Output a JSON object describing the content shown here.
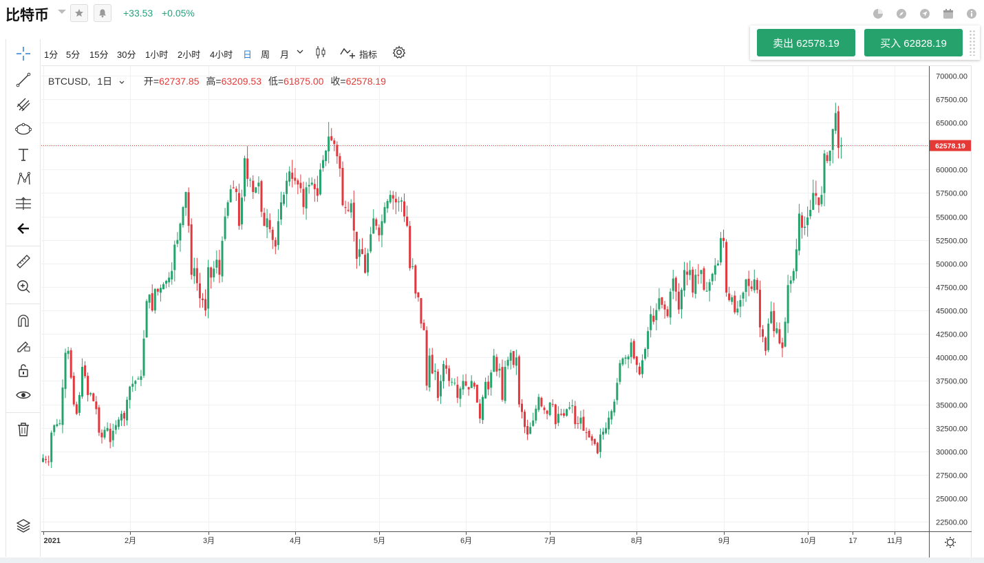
{
  "header": {
    "title": "比特币",
    "change_abs": "+33.53",
    "change_pct": "+0.05%"
  },
  "trade": {
    "sell_label": "卖出 62578.19",
    "buy_label": "买入 62828.19"
  },
  "toolbar": {
    "timeframes": [
      "1分",
      "5分",
      "15分",
      "30分",
      "1小时",
      "2小时",
      "4小时",
      "日",
      "周",
      "月"
    ],
    "active_timeframe": "日",
    "indicators_label": "指标"
  },
  "legend": {
    "symbol": "BTCUSD",
    "interval": "1日",
    "open_label": "开=",
    "open": "62737.85",
    "high_label": "高=",
    "high": "63209.53",
    "low_label": "低=",
    "low": "61875.00",
    "close_label": "收=",
    "close": "62578.19"
  },
  "colors": {
    "up": "#26a36c",
    "down": "#e0383e",
    "accent": "#2a7fd4",
    "price_line": "#e53935"
  },
  "chart_data": {
    "type": "candlestick",
    "y_ticks": [
      "70000.00",
      "67500.00",
      "65000.00",
      "62500.00",
      "60000.00",
      "57500.00",
      "55000.00",
      "52500.00",
      "50000.00",
      "47500.00",
      "45000.00",
      "42500.00",
      "40000.00",
      "37500.00",
      "35000.00",
      "32500.00",
      "30000.00",
      "27500.00",
      "25000.00",
      "22500.00"
    ],
    "ylim": [
      21500,
      71000
    ],
    "x_labels": [
      {
        "label": "2021",
        "day": 0
      },
      {
        "label": "2月",
        "day": 31
      },
      {
        "label": "3月",
        "day": 59
      },
      {
        "label": "4月",
        "day": 90
      },
      {
        "label": "5月",
        "day": 120
      },
      {
        "label": "6月",
        "day": 151
      },
      {
        "label": "7月",
        "day": 181
      },
      {
        "label": "8月",
        "day": 212
      },
      {
        "label": "9月",
        "day": 243
      },
      {
        "label": "10月",
        "day": 273
      },
      {
        "label": "17",
        "day": 289
      },
      {
        "label": "11月",
        "day": 304
      }
    ],
    "last_price": 62578.19,
    "last_price_label": "62578.19",
    "close_anchors": [
      [
        0,
        29300
      ],
      [
        2,
        28900
      ],
      [
        3,
        32000
      ],
      [
        4,
        32800
      ],
      [
        6,
        33000
      ],
      [
        7,
        36800
      ],
      [
        8,
        40500
      ],
      [
        9,
        40700
      ],
      [
        11,
        35000
      ],
      [
        12,
        34000
      ],
      [
        13,
        36000
      ],
      [
        14,
        39000
      ],
      [
        15,
        38000
      ],
      [
        16,
        36000
      ],
      [
        17,
        36200
      ],
      [
        19,
        34500
      ],
      [
        20,
        32000
      ],
      [
        21,
        31500
      ],
      [
        22,
        32300
      ],
      [
        23,
        32500
      ],
      [
        24,
        31000
      ],
      [
        25,
        32200
      ],
      [
        26,
        32800
      ],
      [
        28,
        34000
      ],
      [
        29,
        33500
      ],
      [
        30,
        35500
      ],
      [
        31,
        36900
      ],
      [
        33,
        37500
      ],
      [
        35,
        38000
      ],
      [
        37,
        46000
      ],
      [
        38,
        46700
      ],
      [
        39,
        45000
      ],
      [
        40,
        47300
      ],
      [
        41,
        47000
      ],
      [
        43,
        47800
      ],
      [
        45,
        48500
      ],
      [
        46,
        49200
      ],
      [
        47,
        52000
      ],
      [
        48,
        52500
      ],
      [
        50,
        56000
      ],
      [
        51,
        57600
      ],
      [
        52,
        54000
      ],
      [
        53,
        48800
      ],
      [
        54,
        49500
      ],
      [
        56,
        46300
      ],
      [
        57,
        46100
      ],
      [
        58,
        45000
      ],
      [
        59,
        49600
      ],
      [
        60,
        48500
      ],
      [
        62,
        50400
      ],
      [
        63,
        48800
      ],
      [
        64,
        52400
      ],
      [
        65,
        55000
      ],
      [
        66,
        56500
      ],
      [
        67,
        57900
      ],
      [
        68,
        58000
      ],
      [
        69,
        57600
      ],
      [
        70,
        54000
      ],
      [
        71,
        57000
      ],
      [
        72,
        61200
      ],
      [
        73,
        59000
      ],
      [
        74,
        58900
      ],
      [
        75,
        57600
      ],
      [
        77,
        58600
      ],
      [
        78,
        55500
      ],
      [
        79,
        54000
      ],
      [
        80,
        54800
      ],
      [
        82,
        52500
      ],
      [
        83,
        51800
      ],
      [
        84,
        54500
      ],
      [
        85,
        56500
      ],
      [
        86,
        57300
      ],
      [
        87,
        58800
      ],
      [
        88,
        59800
      ],
      [
        89,
        59000
      ],
      [
        90,
        58800
      ],
      [
        92,
        58000
      ],
      [
        93,
        56000
      ],
      [
        94,
        58100
      ],
      [
        96,
        58600
      ],
      [
        98,
        57200
      ],
      [
        99,
        60000
      ],
      [
        101,
        62000
      ],
      [
        102,
        63500
      ],
      [
        103,
        63100
      ],
      [
        104,
        62700
      ],
      [
        105,
        61400
      ],
      [
        106,
        60100
      ],
      [
        107,
        56200
      ],
      [
        109,
        55600
      ],
      [
        110,
        56400
      ],
      [
        111,
        53500
      ],
      [
        112,
        50500
      ],
      [
        113,
        51500
      ],
      [
        114,
        51000
      ],
      [
        115,
        49000
      ],
      [
        116,
        51100
      ],
      [
        117,
        53100
      ],
      [
        118,
        54800
      ],
      [
        119,
        54000
      ],
      [
        120,
        53000
      ],
      [
        122,
        56000
      ],
      [
        124,
        57300
      ],
      [
        126,
        56500
      ],
      [
        128,
        56700
      ],
      [
        129,
        55000
      ],
      [
        130,
        54000
      ],
      [
        131,
        49500
      ],
      [
        132,
        49700
      ],
      [
        133,
        46800
      ],
      [
        134,
        46400
      ],
      [
        135,
        43600
      ],
      [
        136,
        42900
      ],
      [
        137,
        37000
      ],
      [
        138,
        40200
      ],
      [
        139,
        38300
      ],
      [
        140,
        38600
      ],
      [
        141,
        35700
      ],
      [
        143,
        39300
      ],
      [
        144,
        38800
      ],
      [
        145,
        37500
      ],
      [
        147,
        37300
      ],
      [
        148,
        35700
      ],
      [
        149,
        36700
      ],
      [
        150,
        37500
      ],
      [
        151,
        37000
      ],
      [
        152,
        36600
      ],
      [
        153,
        37500
      ],
      [
        154,
        36900
      ],
      [
        156,
        33500
      ],
      [
        157,
        35800
      ],
      [
        158,
        37400
      ],
      [
        159,
        36600
      ],
      [
        161,
        40200
      ],
      [
        162,
        38500
      ],
      [
        163,
        38800
      ],
      [
        164,
        35500
      ],
      [
        165,
        39000
      ],
      [
        167,
        40500
      ],
      [
        168,
        39200
      ],
      [
        169,
        40000
      ],
      [
        170,
        35000
      ],
      [
        171,
        34200
      ],
      [
        172,
        32600
      ],
      [
        173,
        31800
      ],
      [
        174,
        32600
      ],
      [
        175,
        33300
      ],
      [
        177,
        35800
      ],
      [
        178,
        34800
      ],
      [
        180,
        34000
      ],
      [
        181,
        35200
      ],
      [
        182,
        35000
      ],
      [
        183,
        32900
      ],
      [
        184,
        34000
      ],
      [
        186,
        33800
      ],
      [
        187,
        34500
      ],
      [
        189,
        34900
      ],
      [
        190,
        32900
      ],
      [
        191,
        33000
      ],
      [
        192,
        33600
      ],
      [
        193,
        32200
      ],
      [
        194,
        32000
      ],
      [
        195,
        31500
      ],
      [
        197,
        30800
      ],
      [
        198,
        29800
      ],
      [
        199,
        31800
      ],
      [
        200,
        32100
      ],
      [
        201,
        32500
      ],
      [
        202,
        33600
      ],
      [
        203,
        34300
      ],
      [
        204,
        35300
      ],
      [
        205,
        37300
      ],
      [
        206,
        39400
      ],
      [
        207,
        39900
      ],
      [
        208,
        40000
      ],
      [
        209,
        40100
      ],
      [
        210,
        41600
      ],
      [
        211,
        39900
      ],
      [
        212,
        39200
      ],
      [
        213,
        38200
      ],
      [
        214,
        39700
      ],
      [
        215,
        40900
      ],
      [
        216,
        42800
      ],
      [
        217,
        44600
      ],
      [
        218,
        43800
      ],
      [
        220,
        46300
      ],
      [
        221,
        45600
      ],
      [
        222,
        45100
      ],
      [
        223,
        44400
      ],
      [
        224,
        47000
      ],
      [
        225,
        48400
      ],
      [
        226,
        47000
      ],
      [
        227,
        45100
      ],
      [
        229,
        49300
      ],
      [
        230,
        48800
      ],
      [
        231,
        49300
      ],
      [
        232,
        46900
      ],
      [
        233,
        48800
      ],
      [
        234,
        48700
      ],
      [
        235,
        49300
      ],
      [
        236,
        47200
      ],
      [
        237,
        47100
      ],
      [
        239,
        48900
      ],
      [
        240,
        49800
      ],
      [
        241,
        50000
      ],
      [
        242,
        52700
      ],
      [
        243,
        52400
      ],
      [
        244,
        46900
      ],
      [
        245,
        46100
      ],
      [
        246,
        46400
      ],
      [
        247,
        44800
      ],
      [
        248,
        45200
      ],
      [
        249,
        46100
      ],
      [
        250,
        46900
      ],
      [
        251,
        48300
      ],
      [
        252,
        47600
      ],
      [
        253,
        47300
      ],
      [
        254,
        48300
      ],
      [
        255,
        47200
      ],
      [
        256,
        43200
      ],
      [
        257,
        42200
      ],
      [
        258,
        40700
      ],
      [
        259,
        43600
      ],
      [
        260,
        44900
      ],
      [
        261,
        42800
      ],
      [
        262,
        43100
      ],
      [
        263,
        41500
      ],
      [
        264,
        41000
      ],
      [
        265,
        43800
      ],
      [
        266,
        47700
      ],
      [
        267,
        48200
      ],
      [
        268,
        49200
      ],
      [
        269,
        51500
      ],
      [
        270,
        55300
      ],
      [
        271,
        53800
      ],
      [
        272,
        53900
      ],
      [
        273,
        54900
      ],
      [
        274,
        55700
      ],
      [
        275,
        57500
      ],
      [
        276,
        57200
      ],
      [
        277,
        56200
      ],
      [
        278,
        57300
      ],
      [
        279,
        61700
      ],
      [
        280,
        60900
      ],
      [
        281,
        62000
      ],
      [
        282,
        64300
      ],
      [
        283,
        66000
      ],
      [
        284,
        62300
      ],
      [
        285,
        62578
      ]
    ]
  }
}
